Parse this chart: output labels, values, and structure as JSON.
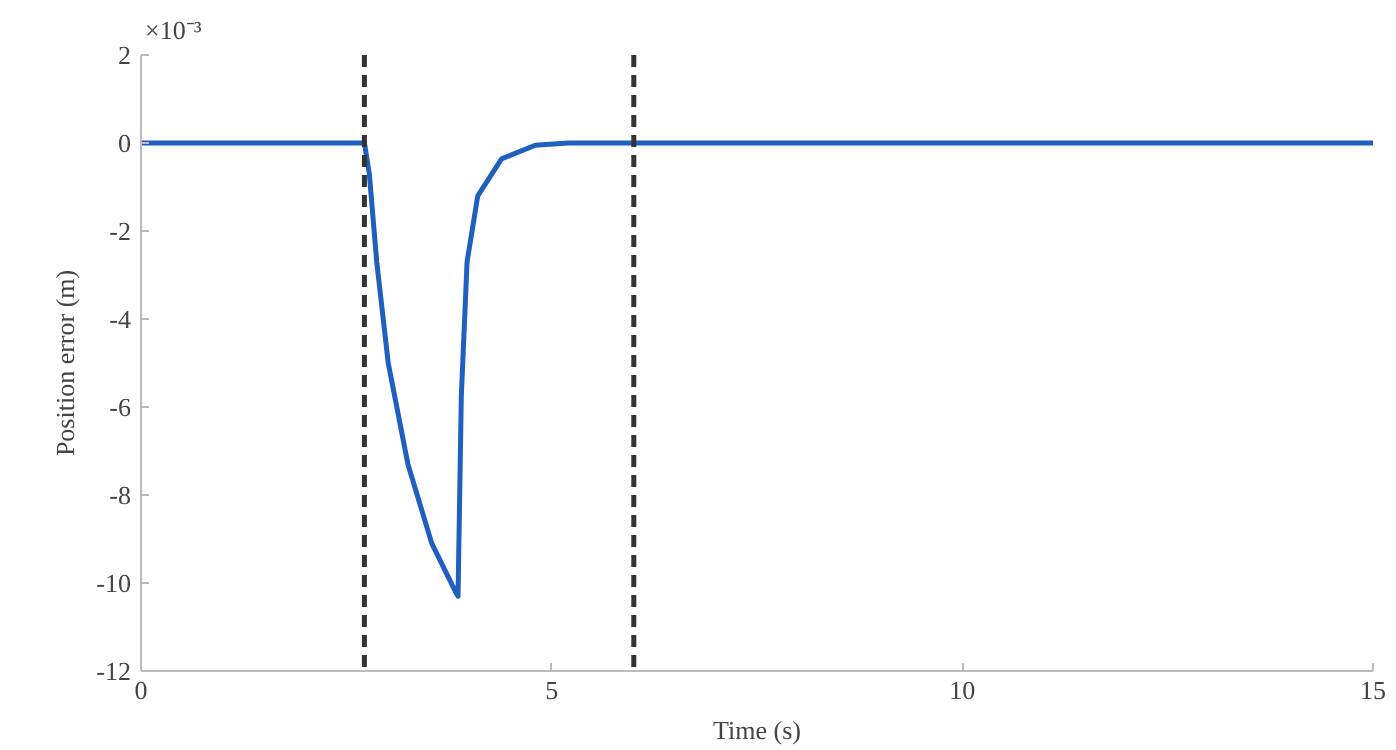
{
  "chart_data": {
    "type": "line",
    "xlabel": "Time (s)",
    "ylabel": "Position error (m)",
    "annotations": [
      "×10⁻³"
    ],
    "x": [
      0,
      2.72,
      2.78,
      2.87,
      3.01,
      3.25,
      3.54,
      3.83,
      3.86,
      3.9,
      3.97,
      4.1,
      4.39,
      4.8,
      5.2,
      15
    ],
    "series": [
      {
        "color": "#1f5fbf",
        "values": [
          0,
          0,
          -0.7,
          -2.7,
          -5.0,
          -7.3,
          -9.1,
          -10.2,
          -10.3,
          -5.75,
          -2.7,
          -1.2,
          -0.36,
          -0.05,
          0,
          0
        ]
      }
    ],
    "xlim": [
      0,
      15
    ],
    "ylim": [
      -12,
      2
    ],
    "xticks": [
      0,
      5,
      10,
      15
    ],
    "yticks": [
      2,
      0,
      -2,
      -4,
      -6,
      -8,
      -10,
      -12
    ],
    "ref_lines": [
      {
        "axis": "x",
        "value": 2.72,
        "color": "#333333",
        "line_style": "dashed"
      },
      {
        "axis": "x",
        "value": 6.0,
        "color": "#333333",
        "line_style": "dashed"
      }
    ],
    "grid": false
  }
}
